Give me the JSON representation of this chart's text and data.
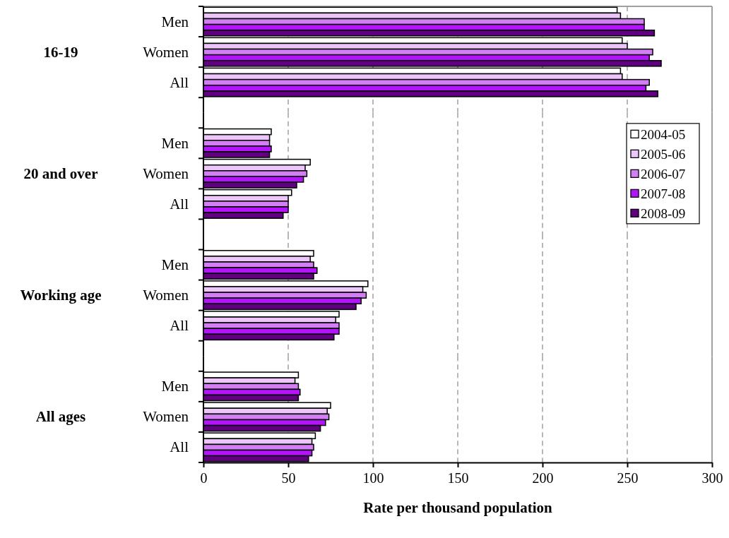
{
  "chart_data": [
    {
      "type": "bar",
      "orientation": "horizontal",
      "ylabel": "16-19",
      "categories": [
        "Men",
        "Women",
        "All"
      ],
      "series": [
        {
          "color": "#ffffff",
          "values": [
            244,
            247,
            246
          ]
        },
        {
          "color": "#ecc6fb",
          "values": [
            246,
            250,
            247
          ]
        },
        {
          "color": "#d47ef5",
          "values": [
            260,
            265,
            263
          ]
        },
        {
          "color": "#b414fb",
          "values": [
            260,
            263,
            261
          ]
        },
        {
          "color": "#600080",
          "values": [
            266,
            270,
            268
          ]
        }
      ],
      "xlim": [
        0,
        300
      ],
      "xticks": [
        0,
        50,
        100,
        150,
        200,
        250,
        300
      ],
      "grid": "x",
      "tick_labels": "y"
    },
    {
      "type": "bar",
      "orientation": "horizontal",
      "ylabel": "20 and over",
      "categories": [
        "Men",
        "Women",
        "All"
      ],
      "series": [
        {
          "name": "2004-05",
          "color": "#ffffff",
          "values": [
            40,
            63,
            52
          ]
        },
        {
          "name": "2005-06",
          "color": "#ecc6fb",
          "values": [
            39,
            60,
            50
          ]
        },
        {
          "name": "2006-07",
          "color": "#d47ef5",
          "values": [
            39,
            61,
            50
          ]
        },
        {
          "name": "2007-08",
          "color": "#b414fb",
          "values": [
            40,
            59,
            50
          ]
        },
        {
          "name": "2008-09",
          "color": "#600080",
          "values": [
            39,
            55,
            47
          ]
        }
      ],
      "xlim": [
        0,
        300
      ],
      "xticks": [
        0,
        50,
        100,
        150,
        200,
        250,
        300
      ],
      "grid": "x",
      "tick_labels": "y",
      "legend": "right"
    },
    {
      "type": "bar",
      "orientation": "horizontal",
      "ylabel": "Working age",
      "categories": [
        "Men",
        "Women",
        "All"
      ],
      "series": [
        {
          "color": "#ffffff",
          "values": [
            65,
            97,
            80
          ]
        },
        {
          "color": "#ecc6fb",
          "values": [
            63,
            94,
            78
          ]
        },
        {
          "color": "#d47ef5",
          "values": [
            65,
            96,
            80
          ]
        },
        {
          "color": "#b414fb",
          "values": [
            67,
            93,
            80
          ]
        },
        {
          "color": "#600080",
          "values": [
            65,
            90,
            77
          ]
        }
      ],
      "xlim": [
        0,
        300
      ],
      "xticks": [
        0,
        50,
        100,
        150,
        200,
        250,
        300
      ],
      "grid": "x",
      "tick_labels": "y"
    },
    {
      "type": "bar",
      "orientation": "horizontal",
      "ylabel": "All ages",
      "xlabel": "Rate per thousand population",
      "categories": [
        "Men",
        "Women",
        "All"
      ],
      "series": [
        {
          "color": "#ffffff",
          "values": [
            56,
            75,
            66
          ]
        },
        {
          "color": "#ecc6fb",
          "values": [
            54,
            73,
            64
          ]
        },
        {
          "color": "#d47ef5",
          "values": [
            56,
            74,
            65
          ]
        },
        {
          "color": "#b414fb",
          "values": [
            57,
            72,
            64
          ]
        },
        {
          "color": "#600080",
          "values": [
            56,
            69,
            62
          ]
        }
      ],
      "xlim": [
        0,
        300
      ],
      "xticks": [
        0,
        50,
        100,
        150,
        200,
        250,
        300
      ],
      "grid": "x"
    }
  ]
}
